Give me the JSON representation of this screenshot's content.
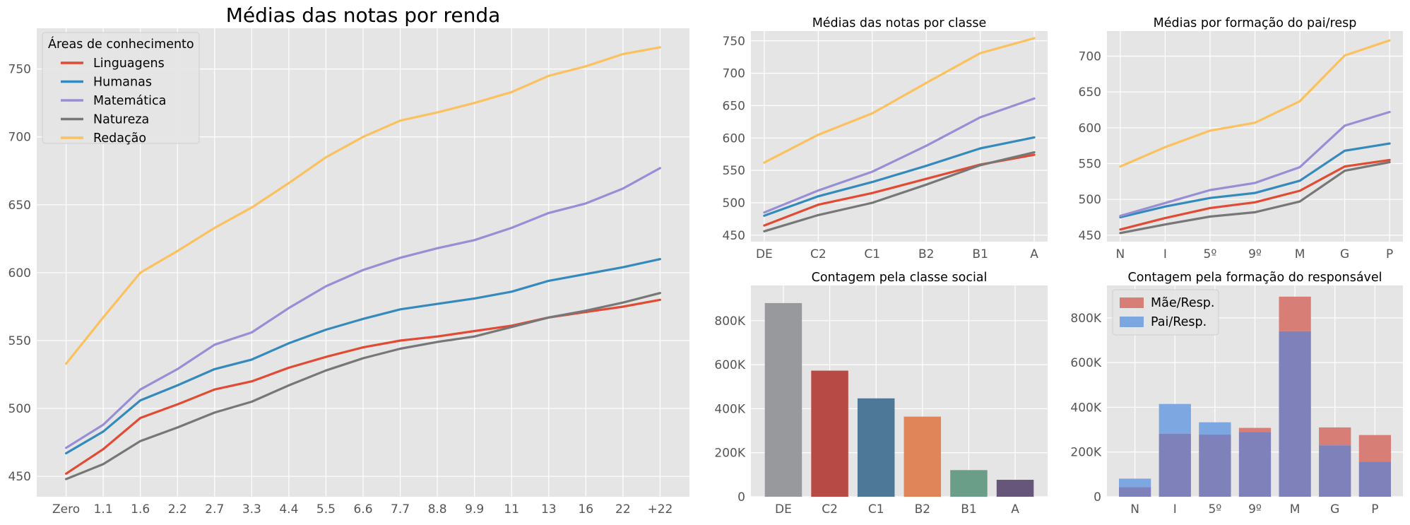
{
  "chart_data": [
    {
      "type": "line",
      "title": "Médias das notas por renda",
      "categories": [
        "Zero",
        "1.1",
        "1.6",
        "2.2",
        "2.7",
        "3.3",
        "4.4",
        "5.5",
        "6.6",
        "7.7",
        "8.8",
        "9.9",
        "11",
        "13",
        "16",
        "22",
        "+22"
      ],
      "ylim": [
        435,
        780
      ],
      "yticks": [
        450,
        500,
        550,
        600,
        650,
        700,
        750
      ],
      "legend": {
        "title": "Áreas de conhecimento",
        "placement": "top-left"
      },
      "series": [
        {
          "name": "Linguagens",
          "color": "#E24A33",
          "values": [
            452,
            470,
            493,
            503,
            514,
            520,
            530,
            538,
            545,
            550,
            553,
            557,
            561,
            567,
            571,
            575,
            580
          ]
        },
        {
          "name": "Humanas",
          "color": "#348ABD",
          "values": [
            467,
            483,
            506,
            517,
            529,
            536,
            548,
            558,
            566,
            573,
            577,
            581,
            586,
            594,
            599,
            604,
            610
          ]
        },
        {
          "name": "Matemática",
          "color": "#988ED5",
          "values": [
            471,
            488,
            514,
            529,
            547,
            556,
            574,
            590,
            602,
            611,
            618,
            624,
            633,
            644,
            651,
            662,
            677
          ]
        },
        {
          "name": "Natureza",
          "color": "#777777",
          "values": [
            448,
            459,
            476,
            486,
            497,
            505,
            517,
            528,
            537,
            544,
            549,
            553,
            560,
            567,
            572,
            578,
            585
          ]
        },
        {
          "name": "Redação",
          "color": "#FBC15E",
          "values": [
            533,
            567,
            600,
            616,
            633,
            648,
            666,
            685,
            700,
            712,
            718,
            725,
            733,
            745,
            752,
            761,
            766
          ]
        }
      ]
    },
    {
      "type": "line",
      "title": "Médias das notas por classe",
      "categories": [
        "DE",
        "C2",
        "C1",
        "B2",
        "B1",
        "A"
      ],
      "ylim": [
        440,
        765
      ],
      "yticks": [
        450,
        500,
        550,
        600,
        650,
        700,
        750
      ],
      "series": [
        {
          "name": "Linguagens",
          "color": "#E24A33",
          "values": [
            465,
            497,
            515,
            537,
            559,
            574
          ]
        },
        {
          "name": "Humanas",
          "color": "#348ABD",
          "values": [
            480,
            510,
            532,
            557,
            584,
            601
          ]
        },
        {
          "name": "Matemática",
          "color": "#988ED5",
          "values": [
            485,
            519,
            548,
            588,
            632,
            661
          ]
        },
        {
          "name": "Natureza",
          "color": "#777777",
          "values": [
            456,
            481,
            500,
            528,
            558,
            578
          ]
        },
        {
          "name": "Redação",
          "color": "#FBC15E",
          "values": [
            562,
            605,
            638,
            685,
            731,
            754
          ]
        }
      ]
    },
    {
      "type": "line",
      "title": "Médias por formação do pai/resp",
      "categories": [
        "N",
        "I",
        "5º",
        "9º",
        "M",
        "G",
        "P"
      ],
      "ylim": [
        441,
        735
      ],
      "yticks": [
        450,
        500,
        550,
        600,
        650,
        700
      ],
      "series": [
        {
          "name": "Linguagens",
          "color": "#E24A33",
          "values": [
            458,
            474,
            488,
            496,
            512,
            546,
            555
          ]
        },
        {
          "name": "Humanas",
          "color": "#348ABD",
          "values": [
            475,
            490,
            502,
            509,
            526,
            568,
            578
          ]
        },
        {
          "name": "Matemática",
          "color": "#988ED5",
          "values": [
            477,
            495,
            513,
            523,
            545,
            603,
            622
          ]
        },
        {
          "name": "Natureza",
          "color": "#777777",
          "values": [
            453,
            465,
            476,
            482,
            497,
            540,
            552
          ]
        },
        {
          "name": "Redação",
          "color": "#FBC15E",
          "values": [
            546,
            573,
            596,
            607,
            637,
            701,
            722
          ]
        }
      ]
    },
    {
      "type": "bar",
      "title": "Contagem pela classe social",
      "categories": [
        "DE",
        "C2",
        "C1",
        "B2",
        "B1",
        "A"
      ],
      "values": [
        880000,
        573000,
        447000,
        364000,
        121000,
        77000
      ],
      "colors": [
        "#97999C",
        "#B84A46",
        "#4E7898",
        "#E0855A",
        "#6A9E89",
        "#66577A"
      ],
      "ylim": [
        0,
        960000
      ],
      "yticks": [
        0,
        200000,
        400000,
        600000,
        800000
      ],
      "ytick_labels": [
        "0",
        "200K",
        "400K",
        "600K",
        "800K"
      ]
    },
    {
      "type": "bar",
      "title": "Contagem pela formação do responsável",
      "categories": [
        "N",
        "I",
        "5º",
        "9º",
        "M",
        "G",
        "P"
      ],
      "ylim": [
        0,
        945000
      ],
      "yticks": [
        0,
        200000,
        400000,
        600000,
        800000
      ],
      "ytick_labels": [
        "0",
        "200K",
        "400K",
        "600K",
        "800K"
      ],
      "legend": {
        "placement": "top-left"
      },
      "series": [
        {
          "name": "Mãe/Resp.",
          "color": "#D77E76",
          "values": [
            43000,
            282000,
            278000,
            308000,
            895000,
            310000,
            276000
          ]
        },
        {
          "name": "Pai/Resp.",
          "color": "#7DA7E1",
          "values": [
            81000,
            415000,
            333000,
            290000,
            740000,
            230000,
            157000
          ]
        }
      ],
      "overlap_color": "#7E81BA"
    }
  ]
}
